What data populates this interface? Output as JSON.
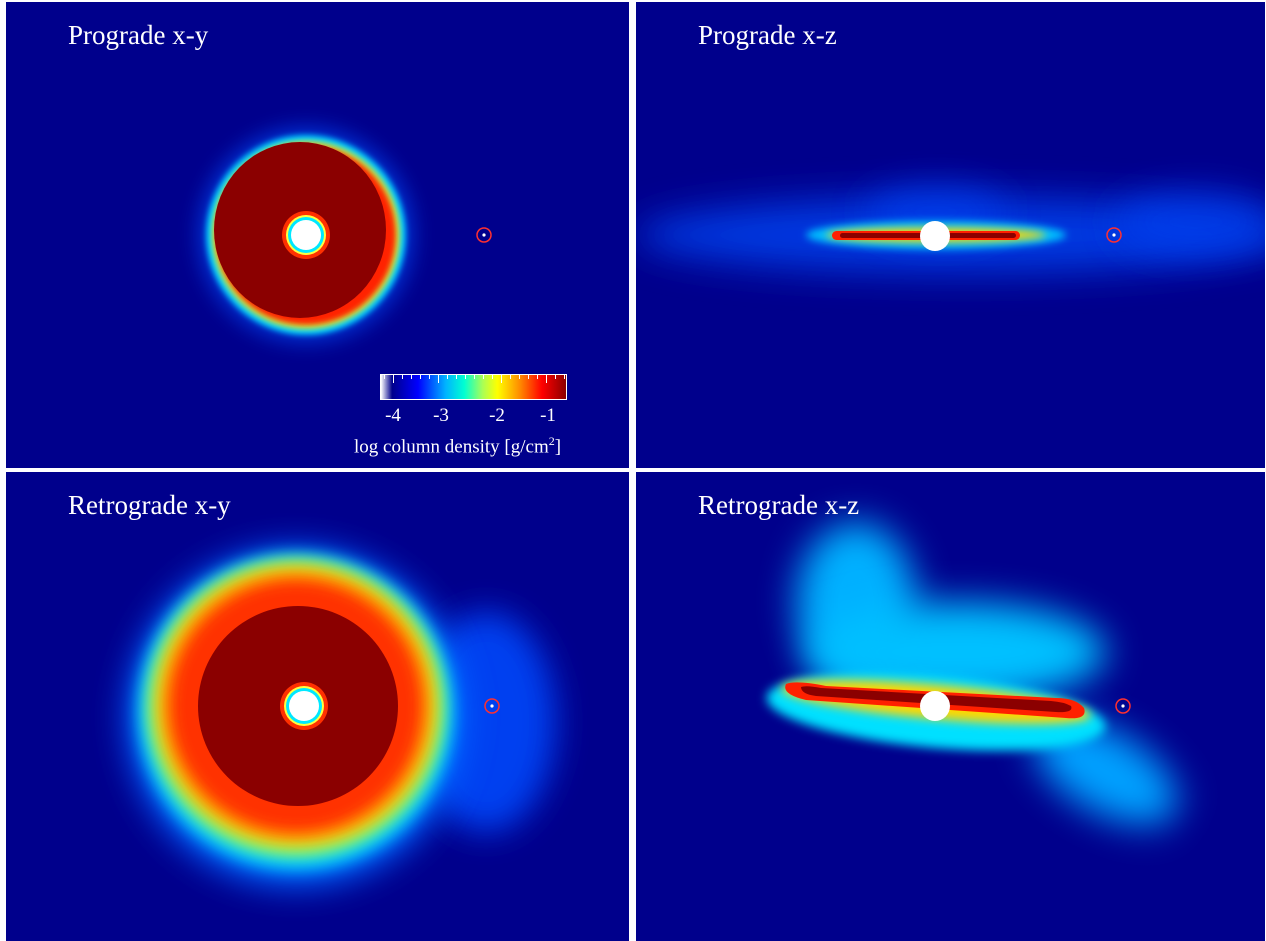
{
  "panels": {
    "p1": {
      "title": "Prograde x-y"
    },
    "p2": {
      "title": "Prograde x-z"
    },
    "p3": {
      "title": "Retrograde x-y"
    },
    "p4": {
      "title": "Retrograde x-z"
    }
  },
  "colorbar": {
    "tick_labels": [
      "-4",
      "-3",
      "-2",
      "-1"
    ],
    "title_prefix": "log column density [g/cm",
    "title_exponent": "2",
    "title_suffix": "]"
  },
  "colors": {
    "background": "#00008c",
    "disk_core": "#8b0000",
    "star": "#ffffff",
    "companion_ring": "#ff3030"
  },
  "icons": {
    "star": "white-disc",
    "companion": "red-ring-with-white-dot"
  }
}
